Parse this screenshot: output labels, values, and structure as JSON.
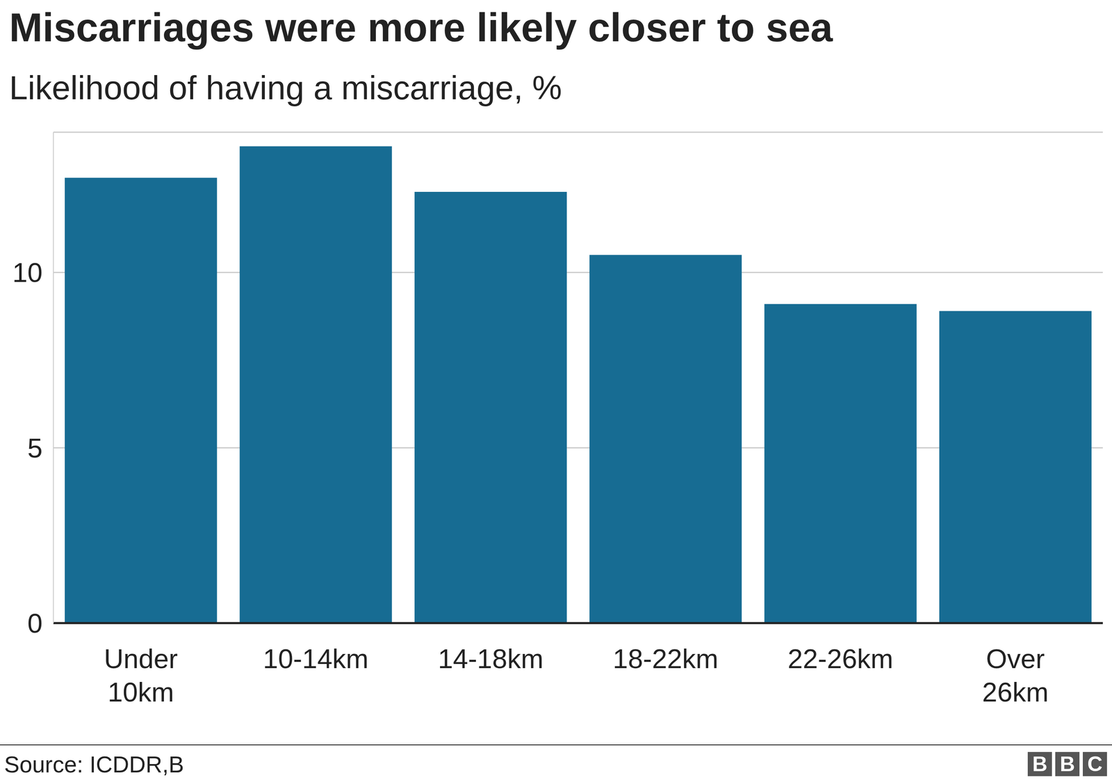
{
  "chart_data": {
    "type": "bar",
    "title": "Miscarriages were more likely closer to sea",
    "subtitle": "Likelihood of having a miscarriage, %",
    "categories": [
      "Under 10km",
      "10-14km",
      "14-18km",
      "18-22km",
      "22-26km",
      "Over 26km"
    ],
    "values": [
      12.7,
      13.6,
      12.3,
      10.5,
      9.1,
      8.9
    ],
    "color": "#176c93",
    "ylim": [
      0,
      14
    ],
    "yticks": [
      0,
      5,
      10
    ],
    "grid": true,
    "source": "Source: ICDDR,B",
    "logo": "BBC"
  }
}
